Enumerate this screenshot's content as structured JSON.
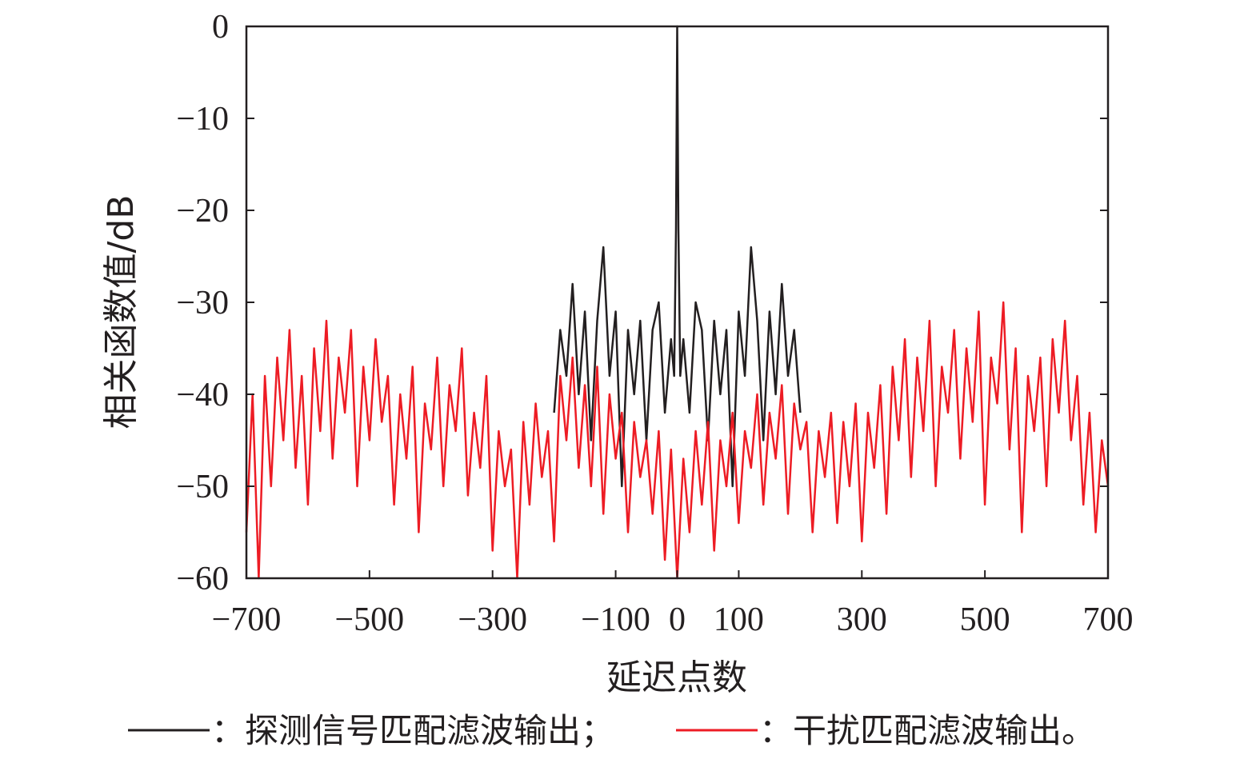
{
  "chart_data": {
    "type": "line",
    "title": "",
    "xlabel": "延迟点数",
    "ylabel": "相关函数值/dB",
    "xlim": [
      -700,
      700
    ],
    "ylim": [
      -60,
      0
    ],
    "x_ticks": [
      -700,
      -500,
      -300,
      -100,
      0,
      100,
      300,
      500,
      700
    ],
    "x_tick_labels": [
      "−700",
      "−500",
      "−300",
      "−100",
      "0",
      "100",
      "300",
      "500",
      "700"
    ],
    "y_ticks": [
      0,
      -10,
      -20,
      -30,
      -40,
      -50,
      -60
    ],
    "y_tick_labels": [
      "0",
      "−10",
      "−20",
      "−30",
      "−40",
      "−50",
      "−60"
    ],
    "grid": false,
    "legend_placement": "bottom",
    "series": [
      {
        "name": "探测信号匹配滤波输出;",
        "color": "#231f20",
        "x": [
          -200,
          -190,
          -180,
          -170,
          -160,
          -150,
          -140,
          -130,
          -120,
          -110,
          -100,
          -90,
          -80,
          -70,
          -60,
          -50,
          -40,
          -30,
          -20,
          -10,
          -5,
          -2,
          0,
          2,
          5,
          10,
          20,
          30,
          40,
          50,
          60,
          70,
          80,
          90,
          100,
          110,
          120,
          130,
          140,
          150,
          160,
          170,
          180,
          190,
          200
        ],
        "y": [
          -42,
          -33,
          -38,
          -28,
          -40,
          -31,
          -45,
          -32,
          -24,
          -38,
          -31,
          -50,
          -33,
          -40,
          -32,
          -45,
          -33,
          -30,
          -42,
          -34,
          -38,
          -22,
          0,
          -22,
          -38,
          -34,
          -42,
          -30,
          -33,
          -45,
          -32,
          -40,
          -33,
          -50,
          -31,
          -38,
          -24,
          -32,
          -45,
          -31,
          -40,
          -28,
          -38,
          -33,
          -42
        ]
      },
      {
        "name": "干扰匹配滤波输出。",
        "color": "#ed1c24",
        "x_start": -700,
        "x_step": 10,
        "y": [
          -55,
          -40,
          -60,
          -38,
          -50,
          -36,
          -45,
          -33,
          -48,
          -38,
          -52,
          -35,
          -44,
          -32,
          -47,
          -36,
          -42,
          -33,
          -50,
          -37,
          -45,
          -34,
          -43,
          -38,
          -52,
          -40,
          -47,
          -37,
          -55,
          -41,
          -46,
          -36,
          -50,
          -39,
          -44,
          -35,
          -51,
          -42,
          -48,
          -38,
          -57,
          -44,
          -50,
          -46,
          -60,
          -43,
          -52,
          -41,
          -49,
          -44,
          -56,
          -38,
          -45,
          -36,
          -48,
          -39,
          -50,
          -37,
          -53,
          -40,
          -47,
          -42,
          -55,
          -43,
          -49,
          -45,
          -53,
          -44,
          -58,
          -46,
          -60,
          -47,
          -55,
          -44,
          -52,
          -43,
          -57,
          -45,
          -50,
          -42,
          -54,
          -44,
          -48,
          -40,
          -52,
          -42,
          -47,
          -39,
          -53,
          -41,
          -46,
          -43,
          -55,
          -44,
          -49,
          -42,
          -54,
          -43,
          -50,
          -41,
          -56,
          -42,
          -48,
          -39,
          -53,
          -37,
          -45,
          -34,
          -49,
          -36,
          -44,
          -32,
          -50,
          -37,
          -42,
          -33,
          -47,
          -35,
          -43,
          -31,
          -52,
          -36,
          -41,
          -30,
          -46,
          -35,
          -55,
          -38,
          -44,
          -36,
          -50,
          -34,
          -42,
          -32,
          -45,
          -38,
          -52,
          -42,
          -55,
          -45,
          -50
        ]
      }
    ],
    "legend": [
      {
        "label": "：探测信号匹配滤波输出；"
      },
      {
        "label": "：干扰匹配滤波输出。"
      }
    ]
  }
}
